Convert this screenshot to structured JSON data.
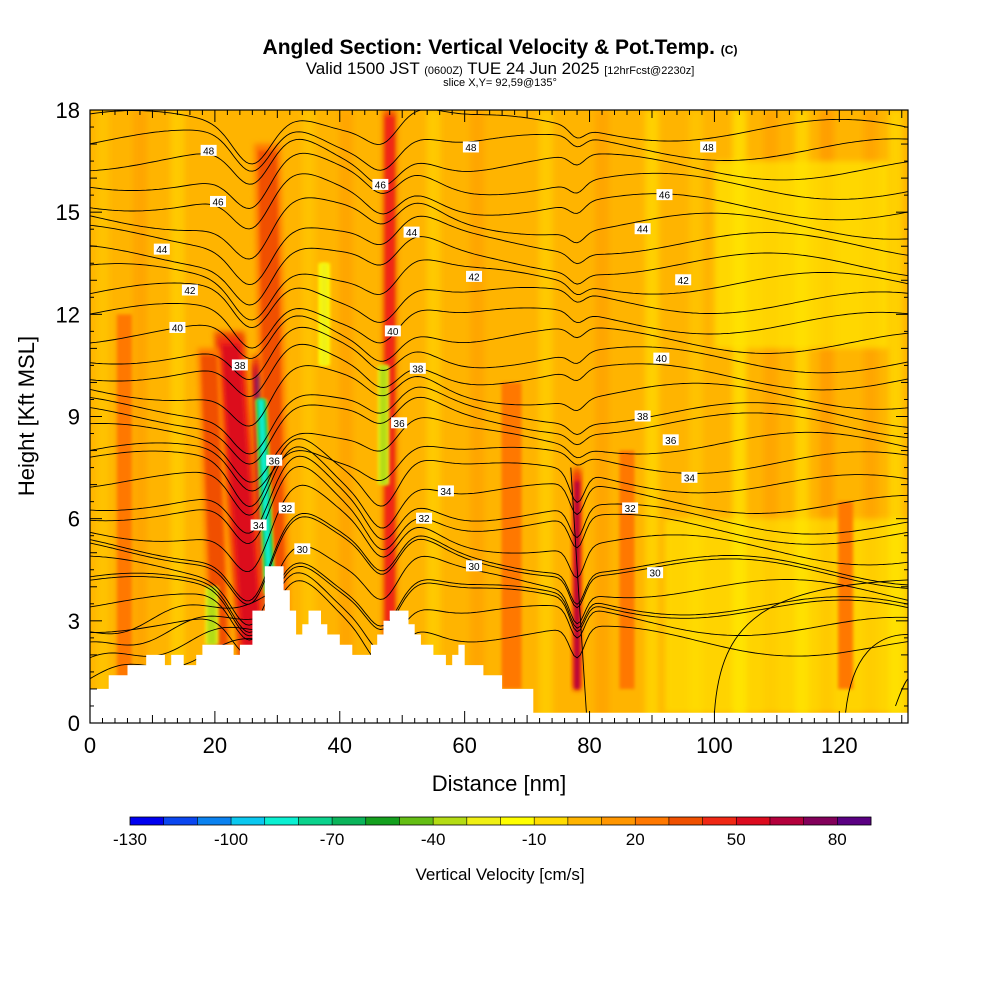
{
  "title": {
    "main": "Angled Section: Vertical Velocity & Pot.Temp.",
    "main_unit": "(C)",
    "valid_prefix": "Valid 1500 JST",
    "valid_utc": "(0600Z)",
    "valid_date": "TUE 24 Jun 2025",
    "forecast": "[12hrFcst@2230z]",
    "slice": "slice X,Y= 92,59@135°"
  },
  "chart_data": {
    "type": "heatmap",
    "xlabel": "Distance [nm]",
    "ylabel": "Height [Kft MSL]",
    "xlim": [
      0,
      131
    ],
    "ylim": [
      0,
      18
    ],
    "x_ticks": [
      "0",
      "20",
      "40",
      "60",
      "80",
      "100",
      "120"
    ],
    "y_ticks": [
      "0",
      "3",
      "6",
      "9",
      "12",
      "15",
      "18"
    ],
    "colorbar": {
      "label": "Vertical Velocity [cm/s]",
      "min": -130,
      "max": 90,
      "step": 10,
      "tick_labels": [
        "-130",
        "-100",
        "-70",
        "-40",
        "-10",
        "20",
        "50",
        "80"
      ],
      "colors": [
        "#0000f0",
        "#0a46f0",
        "#0a82f0",
        "#0ac8f0",
        "#0af0d2",
        "#0ad28c",
        "#0ab45a",
        "#14a01e",
        "#64be14",
        "#b4dc14",
        "#f0f014",
        "#ffff00",
        "#ffdc00",
        "#ffb400",
        "#ff9600",
        "#ff7800",
        "#f05000",
        "#f02814",
        "#dc0a1e",
        "#b4003c",
        "#82005a",
        "#5a0082"
      ]
    },
    "theta_contours": [
      {
        "value": 30,
        "y_start": 3.0
      },
      {
        "value": 32,
        "y_start": 4.0
      },
      {
        "value": 34,
        "y_start": 5.2
      },
      {
        "value": 36,
        "y_start": 6.6
      },
      {
        "value": 38,
        "y_start": 7.9
      },
      {
        "value": 40,
        "y_start": 9.3
      },
      {
        "value": 42,
        "y_start": 10.9
      },
      {
        "value": 44,
        "y_start": 12.6
      },
      {
        "value": 46,
        "y_start": 14.3
      },
      {
        "value": 48,
        "y_start": 16.0
      }
    ],
    "contour_labels": [
      {
        "text": "48",
        "x": 19,
        "y": 16.8
      },
      {
        "text": "48",
        "x": 61,
        "y": 16.9
      },
      {
        "text": "48",
        "x": 99,
        "y": 16.9
      },
      {
        "text": "46",
        "x": 20.5,
        "y": 15.3
      },
      {
        "text": "46",
        "x": 46.5,
        "y": 15.8
      },
      {
        "text": "46",
        "x": 92,
        "y": 15.5
      },
      {
        "text": "44",
        "x": 11.5,
        "y": 13.9
      },
      {
        "text": "44",
        "x": 51.5,
        "y": 14.4
      },
      {
        "text": "44",
        "x": 88.5,
        "y": 14.5
      },
      {
        "text": "42",
        "x": 16,
        "y": 12.7
      },
      {
        "text": "42",
        "x": 61.5,
        "y": 13.1
      },
      {
        "text": "42",
        "x": 95,
        "y": 13.0
      },
      {
        "text": "40",
        "x": 14,
        "y": 11.6
      },
      {
        "text": "40",
        "x": 48.5,
        "y": 11.5
      },
      {
        "text": "40",
        "x": 91.5,
        "y": 10.7
      },
      {
        "text": "38",
        "x": 24,
        "y": 10.5
      },
      {
        "text": "38",
        "x": 52.5,
        "y": 10.4
      },
      {
        "text": "38",
        "x": 88.5,
        "y": 9.0
      },
      {
        "text": "36",
        "x": 49.5,
        "y": 8.8
      },
      {
        "text": "36",
        "x": 93,
        "y": 8.3
      },
      {
        "text": "36",
        "x": 29.5,
        "y": 7.7
      },
      {
        "text": "34",
        "x": 57,
        "y": 6.8
      },
      {
        "text": "34",
        "x": 96,
        "y": 7.2
      },
      {
        "text": "34",
        "x": 27,
        "y": 5.8
      },
      {
        "text": "32",
        "x": 31.5,
        "y": 6.3
      },
      {
        "text": "32",
        "x": 53.5,
        "y": 6.0
      },
      {
        "text": "32",
        "x": 86.5,
        "y": 6.3
      },
      {
        "text": "30",
        "x": 34,
        "y": 5.1
      },
      {
        "text": "30",
        "x": 61.5,
        "y": 4.6
      },
      {
        "text": "30",
        "x": 90.5,
        "y": 4.4
      }
    ],
    "terrain": [
      [
        0,
        1.0
      ],
      [
        3,
        1.0
      ],
      [
        3,
        1.4
      ],
      [
        6,
        1.4
      ],
      [
        6,
        1.7
      ],
      [
        9,
        1.7
      ],
      [
        9,
        2.0
      ],
      [
        12,
        2.0
      ],
      [
        12,
        1.7
      ],
      [
        13,
        1.7
      ],
      [
        13,
        2.0
      ],
      [
        15,
        2.0
      ],
      [
        15,
        1.7
      ],
      [
        17,
        1.7
      ],
      [
        17,
        2.0
      ],
      [
        18,
        2.0
      ],
      [
        18,
        2.3
      ],
      [
        23,
        2.3
      ],
      [
        23,
        2.0
      ],
      [
        24,
        2.0
      ],
      [
        24,
        2.3
      ],
      [
        26,
        2.3
      ],
      [
        26,
        3.3
      ],
      [
        28,
        3.3
      ],
      [
        28,
        4.6
      ],
      [
        31,
        4.6
      ],
      [
        31,
        3.9
      ],
      [
        32,
        3.9
      ],
      [
        32,
        3.3
      ],
      [
        33,
        3.3
      ],
      [
        33,
        2.6
      ],
      [
        34,
        2.6
      ],
      [
        34,
        2.9
      ],
      [
        35,
        2.9
      ],
      [
        35,
        3.3
      ],
      [
        37,
        3.3
      ],
      [
        37,
        2.9
      ],
      [
        38,
        2.9
      ],
      [
        38,
        2.6
      ],
      [
        40,
        2.6
      ],
      [
        40,
        2.3
      ],
      [
        42,
        2.3
      ],
      [
        42,
        2.0
      ],
      [
        45,
        2.0
      ],
      [
        45,
        2.3
      ],
      [
        46,
        2.3
      ],
      [
        46,
        2.6
      ],
      [
        47,
        2.6
      ],
      [
        47,
        3.0
      ],
      [
        48,
        3.0
      ],
      [
        48,
        3.3
      ],
      [
        51,
        3.3
      ],
      [
        51,
        2.9
      ],
      [
        52,
        2.9
      ],
      [
        52,
        2.6
      ],
      [
        53,
        2.6
      ],
      [
        53,
        2.3
      ],
      [
        55,
        2.3
      ],
      [
        55,
        2.0
      ],
      [
        57,
        2.0
      ],
      [
        57,
        1.7
      ],
      [
        58,
        1.7
      ],
      [
        58,
        2.0
      ],
      [
        59,
        2.0
      ],
      [
        59,
        2.3
      ],
      [
        60,
        2.3
      ],
      [
        60,
        1.7
      ],
      [
        63,
        1.7
      ],
      [
        63,
        1.4
      ],
      [
        66,
        1.4
      ],
      [
        66,
        1.0
      ],
      [
        71,
        1.0
      ],
      [
        71,
        0.3
      ],
      [
        131,
        0.3
      ],
      [
        131,
        0
      ]
    ],
    "updrafts": [
      {
        "x": 28.5,
        "ytop": 10.8,
        "width": 1.3,
        "slope": -0.15,
        "value": 85
      },
      {
        "x": 26.5,
        "ytop": 11.5,
        "width": 3.0,
        "slope": -0.4,
        "value": 50
      },
      {
        "x": 21.0,
        "ytop": 11.0,
        "width": 2.2,
        "slope": -0.2,
        "value": 38
      },
      {
        "x": 30.0,
        "ytop": 17.0,
        "width": 2.6,
        "slope": -0.1,
        "value": 35
      },
      {
        "x": 48.0,
        "ytop": 18.0,
        "width": 1.3,
        "slope": 0.0,
        "value": 40
      },
      {
        "x": 78.0,
        "ytop": 7.5,
        "width": 0.8,
        "slope": 0.0,
        "value": 60
      },
      {
        "x": 67.5,
        "ytop": 10.0,
        "width": 2.0,
        "slope": 0.0,
        "value": 22
      },
      {
        "x": 5.5,
        "ytop": 12.0,
        "width": 1.5,
        "slope": 0.0,
        "value": 20
      },
      {
        "x": 86.0,
        "ytop": 8.0,
        "width": 1.5,
        "slope": 0.0,
        "value": 20
      },
      {
        "x": 121.0,
        "ytop": 6.5,
        "width": 1.5,
        "slope": 0.0,
        "value": 20
      }
    ],
    "downdrafts": [
      {
        "x": 28.8,
        "ybot": 3.8,
        "ytop": 9.5,
        "width": 1.0,
        "slope": -0.25,
        "value": -85
      },
      {
        "x": 19.5,
        "ybot": 2.3,
        "ytop": 4.0,
        "width": 1.2,
        "slope": 0.0,
        "value": -40
      },
      {
        "x": 37.5,
        "ybot": 10.5,
        "ytop": 13.5,
        "width": 1.0,
        "slope": 0.0,
        "value": -30
      },
      {
        "x": 47.0,
        "ybot": 7.0,
        "ytop": 10.5,
        "width": 1.0,
        "slope": 0.0,
        "value": -35
      }
    ]
  }
}
